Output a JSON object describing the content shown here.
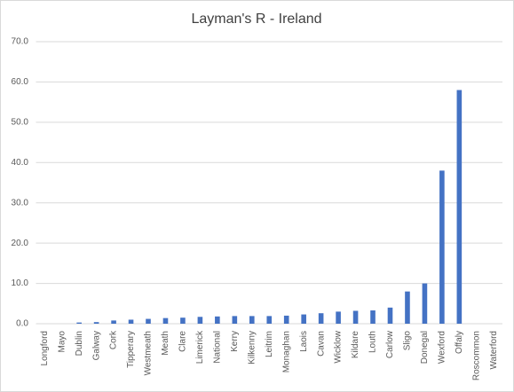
{
  "chart_data": {
    "type": "bar",
    "title": "Layman's R - Ireland",
    "categories": [
      "Longford",
      "Mayo",
      "Dublin",
      "Galway",
      "Cork",
      "Tipperary",
      "Westmeath",
      "Meath",
      "Clare",
      "Limerick",
      "National",
      "Kerry",
      "Kilkenny",
      "Leitrim",
      "Monaghan",
      "Laois",
      "Cavan",
      "Wicklow",
      "Kildare",
      "Louth",
      "Carlow",
      "Sligo",
      "Donegal",
      "Wexford",
      "Offaly",
      "Roscommon",
      "Waterford"
    ],
    "values": [
      0,
      0,
      0.3,
      0.4,
      0.8,
      1.0,
      1.2,
      1.4,
      1.5,
      1.7,
      1.8,
      1.9,
      1.9,
      1.9,
      2.0,
      2.3,
      2.6,
      3.0,
      3.2,
      3.3,
      4.0,
      8.0,
      10.0,
      38.0,
      58.0,
      0,
      0
    ],
    "color": "#4472c4",
    "ylim": [
      0,
      70
    ],
    "yticks": [
      {
        "value": 0,
        "label": "0.0"
      },
      {
        "value": 10,
        "label": "10.0"
      },
      {
        "value": 20,
        "label": "20.0"
      },
      {
        "value": 30,
        "label": "30.0"
      },
      {
        "value": 40,
        "label": "40.0"
      },
      {
        "value": 50,
        "label": "50.0"
      },
      {
        "value": 60,
        "label": "60.0"
      },
      {
        "value": 70,
        "label": "70.0"
      }
    ],
    "grid": true
  }
}
